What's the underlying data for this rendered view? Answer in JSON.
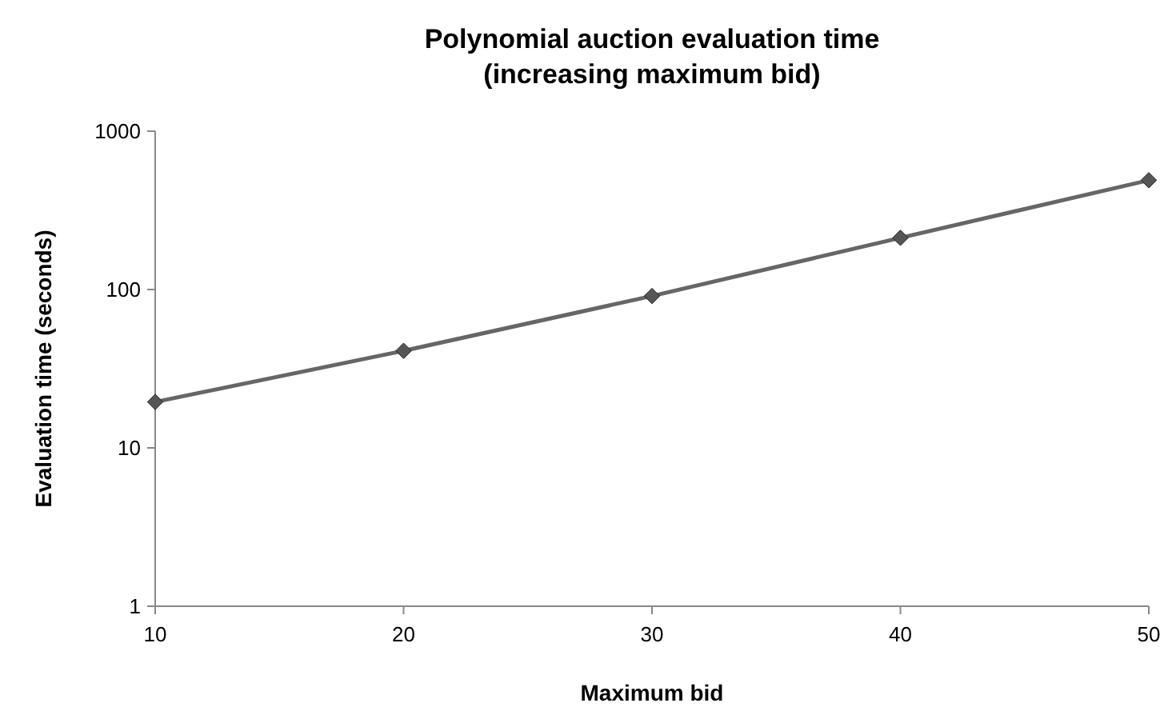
{
  "chart_data": {
    "type": "line",
    "title": "Polynomial auction evaluation time\n(increasing maximum bid)",
    "xlabel": "Maximum bid",
    "ylabel": "Evaluation time (seconds)",
    "x": [
      10,
      20,
      30,
      40,
      50
    ],
    "series": [
      {
        "color": "#666666",
        "values": [
          19.5,
          41,
          91,
          212,
          490
        ]
      }
    ],
    "xlim": [
      10,
      50
    ],
    "xticks": [
      10,
      20,
      30,
      40,
      50
    ],
    "ylim": [
      1,
      1000
    ],
    "yticks": [
      1,
      10,
      100,
      1000
    ],
    "log": true,
    "marker": "diamond",
    "line_style": "solid"
  }
}
